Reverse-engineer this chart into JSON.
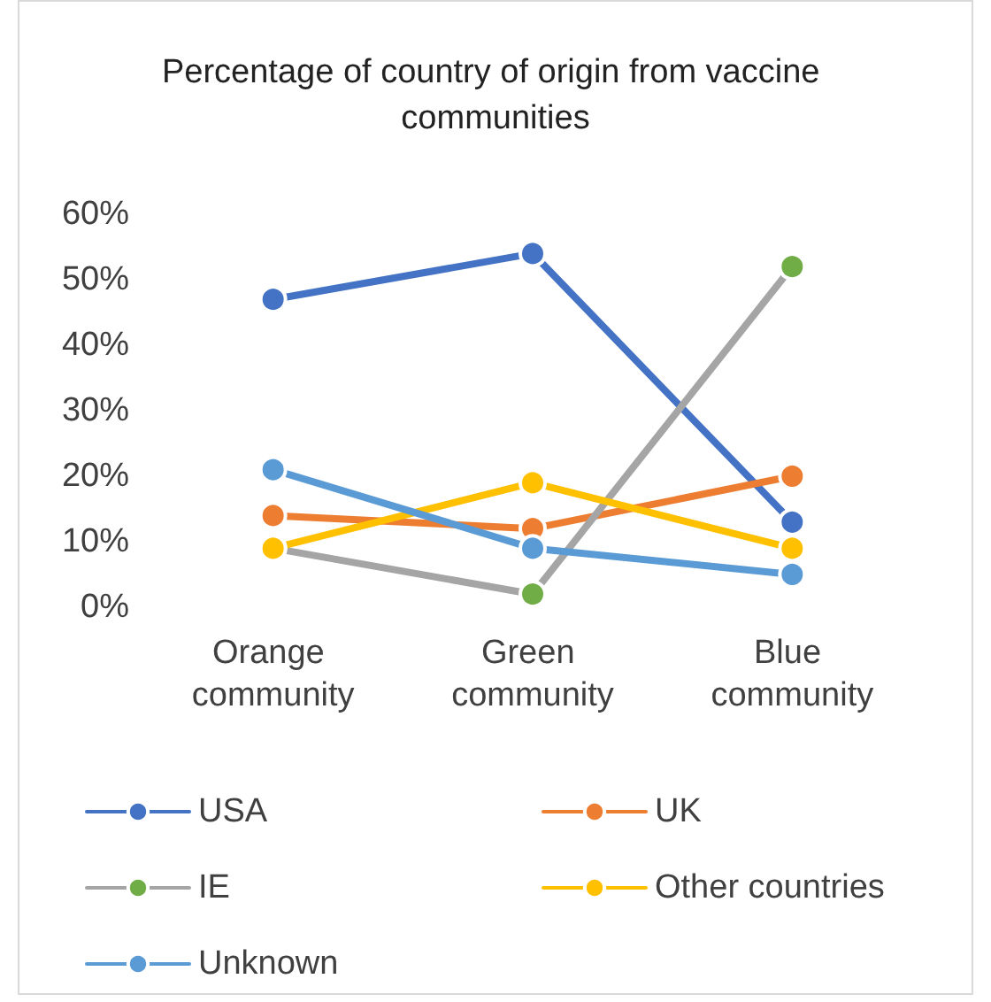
{
  "chart_data": {
    "type": "line",
    "title": "Percentage of country of origin from vaccine communities",
    "categories": [
      "Orange community",
      "Green community",
      "Blue community"
    ],
    "series": [
      {
        "name": "USA",
        "color": "#4472c4",
        "values": [
          47,
          54,
          13
        ]
      },
      {
        "name": "UK",
        "color": "#ed7d31",
        "values": [
          14,
          12,
          20
        ]
      },
      {
        "name": "IE",
        "color": "#a5a5a5",
        "colors": [
          "#70ad47",
          "#70ad47",
          "#70ad47"
        ],
        "values": [
          9,
          2,
          52
        ]
      },
      {
        "name": "Other countries",
        "color": "#ffc000",
        "values": [
          9,
          19,
          9
        ]
      },
      {
        "name": "Unknown",
        "color": "#5b9bd5",
        "values": [
          21,
          9,
          5
        ]
      }
    ],
    "ylim": [
      0,
      60
    ],
    "yticks": [
      {
        "value": 0,
        "label": "0%"
      },
      {
        "value": 10,
        "label": "10%"
      },
      {
        "value": 20,
        "label": "20%"
      },
      {
        "value": 30,
        "label": "30%"
      },
      {
        "value": 40,
        "label": "40%"
      },
      {
        "value": 50,
        "label": "50%"
      },
      {
        "value": 60,
        "label": "60%"
      }
    ],
    "grid": false,
    "legend": "bottom",
    "marker": "circle",
    "line_style": "solid"
  }
}
